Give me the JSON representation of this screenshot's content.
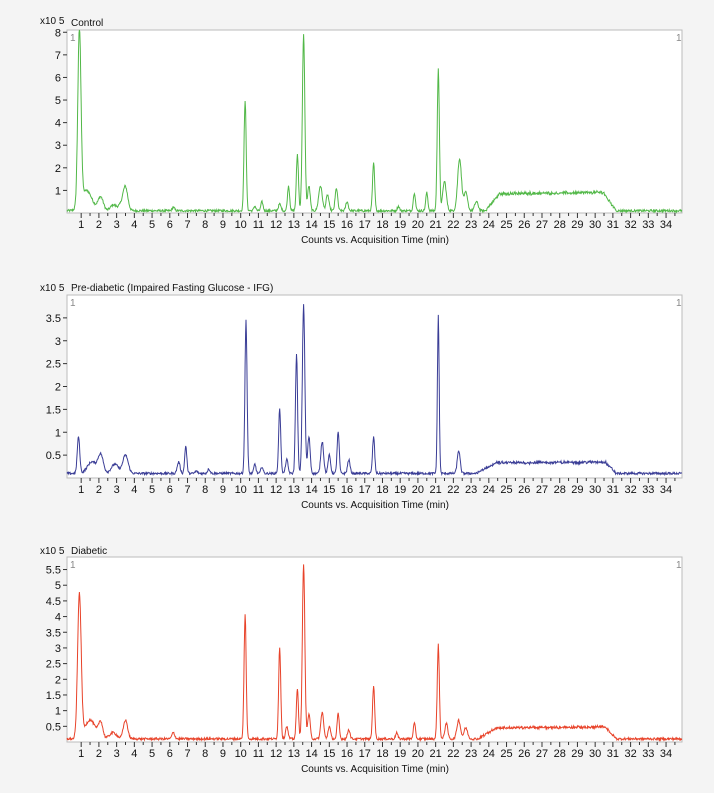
{
  "xlabel": "Counts vs. Acquisition Time (min)",
  "x_ticks": [
    1,
    2,
    3,
    4,
    5,
    6,
    7,
    8,
    9,
    10,
    11,
    12,
    13,
    14,
    15,
    16,
    17,
    18,
    19,
    20,
    21,
    22,
    23,
    24,
    25,
    26,
    27,
    28,
    29,
    30,
    31,
    32,
    33,
    34
  ],
  "chart_data": [
    {
      "type": "line",
      "title": "Control",
      "multiplier": "x10 5",
      "marker": "1",
      "color": "#52b848",
      "xlabel": "Counts vs. Acquisition Time (min)",
      "xlim": [
        0.2,
        34.9
      ],
      "ylim": [
        0,
        8.1
      ],
      "y_ticks": [
        1,
        2,
        3,
        4,
        5,
        6,
        7,
        8
      ],
      "y_tick_labels": [
        "1",
        "2",
        "3",
        "4",
        "5",
        "6",
        "7",
        "8"
      ],
      "baseline": 0.1,
      "plateau": {
        "start": 23.8,
        "end": 31.2,
        "level": 0.85,
        "edge": 24.6,
        "drop": 30.5
      },
      "peaks": [
        [
          0.9,
          7.9,
          0.09
        ],
        [
          1.3,
          1.0,
          0.3
        ],
        [
          2.1,
          0.7,
          0.15
        ],
        [
          2.8,
          0.35,
          0.15
        ],
        [
          3.5,
          1.0,
          0.13
        ],
        [
          3.3,
          0.4,
          0.2
        ],
        [
          6.2,
          0.25,
          0.07
        ],
        [
          10.25,
          5.0,
          0.06
        ],
        [
          10.8,
          0.3,
          0.06
        ],
        [
          11.2,
          0.5,
          0.06
        ],
        [
          12.2,
          0.4,
          0.07
        ],
        [
          12.7,
          1.2,
          0.06
        ],
        [
          13.2,
          2.6,
          0.06
        ],
        [
          13.55,
          7.9,
          0.07
        ],
        [
          13.85,
          1.2,
          0.07
        ],
        [
          14.5,
          1.2,
          0.1
        ],
        [
          14.9,
          0.8,
          0.08
        ],
        [
          15.4,
          1.1,
          0.07
        ],
        [
          16.0,
          0.5,
          0.07
        ],
        [
          17.5,
          2.2,
          0.06
        ],
        [
          18.9,
          0.3,
          0.06
        ],
        [
          19.8,
          0.9,
          0.06
        ],
        [
          20.5,
          0.9,
          0.06
        ],
        [
          21.15,
          6.4,
          0.06
        ],
        [
          21.5,
          1.4,
          0.1
        ],
        [
          22.35,
          2.4,
          0.11
        ],
        [
          22.7,
          0.9,
          0.1
        ],
        [
          23.3,
          0.5,
          0.1
        ]
      ]
    },
    {
      "type": "line",
      "title": "Pre-diabetic (Impaired Fasting Glucose - IFG)",
      "multiplier": "x10 5",
      "marker": "1",
      "color": "#3a3d96",
      "xlabel": "Counts vs. Acquisition Time (min)",
      "xlim": [
        0.2,
        34.9
      ],
      "ylim": [
        0,
        4.0
      ],
      "y_ticks": [
        0.5,
        1,
        1.5,
        2,
        2.5,
        3,
        3.5
      ],
      "y_tick_labels": [
        "0.5",
        "1",
        "1.5",
        "2",
        "2.5",
        "3",
        "3.5"
      ],
      "baseline": 0.1,
      "plateau": {
        "start": 23.3,
        "end": 31.2,
        "level": 0.33,
        "edge": 24.4,
        "drop": 30.6
      },
      "peaks": [
        [
          0.85,
          0.9,
          0.07
        ],
        [
          1.6,
          0.35,
          0.25
        ],
        [
          2.1,
          0.5,
          0.15
        ],
        [
          2.9,
          0.3,
          0.2
        ],
        [
          3.5,
          0.5,
          0.15
        ],
        [
          6.5,
          0.35,
          0.08
        ],
        [
          6.9,
          0.7,
          0.06
        ],
        [
          7.5,
          0.15,
          0.07
        ],
        [
          8.2,
          0.2,
          0.07
        ],
        [
          10.3,
          3.45,
          0.06
        ],
        [
          10.8,
          0.3,
          0.06
        ],
        [
          11.2,
          0.25,
          0.06
        ],
        [
          12.2,
          1.5,
          0.06
        ],
        [
          12.6,
          0.4,
          0.07
        ],
        [
          13.15,
          2.7,
          0.06
        ],
        [
          13.55,
          3.8,
          0.07
        ],
        [
          13.85,
          0.9,
          0.07
        ],
        [
          14.6,
          0.8,
          0.08
        ],
        [
          15.0,
          0.5,
          0.07
        ],
        [
          15.5,
          1.0,
          0.06
        ],
        [
          16.1,
          0.4,
          0.07
        ],
        [
          17.5,
          0.9,
          0.06
        ],
        [
          21.15,
          3.55,
          0.05
        ],
        [
          22.3,
          0.6,
          0.08
        ]
      ]
    },
    {
      "type": "line",
      "title": "Diabetic",
      "multiplier": "x10 5",
      "marker": "1",
      "color": "#e8432a",
      "xlabel": "Counts vs. Acquisition Time (min)",
      "xlim": [
        0.2,
        34.9
      ],
      "ylim": [
        0,
        5.9
      ],
      "y_ticks": [
        0.5,
        1,
        1.5,
        2,
        2.5,
        3,
        3.5,
        4,
        4.5,
        5,
        5.5
      ],
      "y_tick_labels": [
        "0.5",
        "1",
        "1.5",
        "2",
        "2.5",
        "3",
        "3.5",
        "4",
        "4.5",
        "5",
        "5.5"
      ],
      "baseline": 0.1,
      "plateau": {
        "start": 23.4,
        "end": 31.2,
        "level": 0.45,
        "edge": 24.4,
        "drop": 30.6
      },
      "peaks": [
        [
          0.9,
          4.7,
          0.1
        ],
        [
          1.5,
          0.7,
          0.3
        ],
        [
          2.1,
          0.6,
          0.12
        ],
        [
          2.8,
          0.3,
          0.2
        ],
        [
          3.5,
          0.7,
          0.12
        ],
        [
          6.2,
          0.3,
          0.08
        ],
        [
          10.25,
          4.05,
          0.06
        ],
        [
          12.2,
          3.0,
          0.06
        ],
        [
          12.6,
          0.5,
          0.07
        ],
        [
          13.2,
          1.7,
          0.06
        ],
        [
          13.55,
          5.7,
          0.07
        ],
        [
          13.85,
          0.9,
          0.07
        ],
        [
          14.6,
          0.95,
          0.08
        ],
        [
          15.0,
          0.5,
          0.07
        ],
        [
          15.5,
          0.9,
          0.06
        ],
        [
          16.1,
          0.4,
          0.07
        ],
        [
          17.5,
          1.8,
          0.06
        ],
        [
          18.8,
          0.3,
          0.06
        ],
        [
          19.8,
          0.6,
          0.06
        ],
        [
          21.15,
          3.1,
          0.06
        ],
        [
          21.6,
          0.6,
          0.08
        ],
        [
          22.3,
          0.7,
          0.1
        ],
        [
          22.7,
          0.45,
          0.1
        ]
      ]
    }
  ]
}
